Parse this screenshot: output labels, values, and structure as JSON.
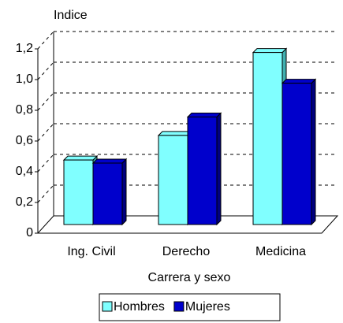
{
  "chart_data": {
    "type": "bar3d",
    "title": "Indice",
    "x_label": "Carrera y sexo",
    "categories": [
      "Ing. Civil",
      "Derecho",
      "Medicina"
    ],
    "series": [
      {
        "name": "Hombres",
        "color": "#80ffff",
        "values": [
          0.42,
          0.58,
          1.12
        ]
      },
      {
        "name": "Mujeres",
        "color": "#0000cc",
        "values": [
          0.4,
          0.7,
          0.92
        ]
      }
    ],
    "ylim": [
      0,
      1.2
    ],
    "yticks": [
      0,
      {
        "value": 0.2,
        "label": "0,2"
      },
      {
        "value": 0.4,
        "label": "0,4"
      },
      {
        "value": 0.6,
        "label": "0,6"
      },
      {
        "value": 0.8,
        "label": "0,8"
      },
      {
        "value": 1.0,
        "label": "1,0"
      },
      {
        "value": 1.2,
        "label": "1,2"
      }
    ],
    "grid": true
  }
}
